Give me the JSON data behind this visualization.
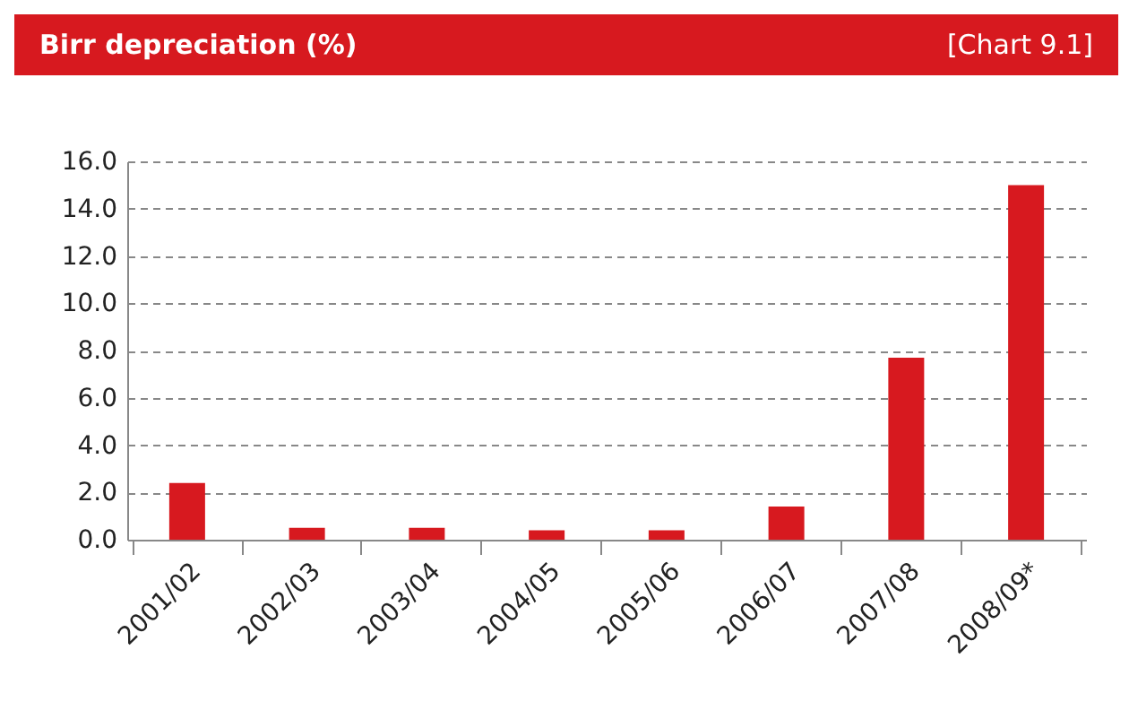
{
  "chart_data": {
    "type": "bar",
    "title": "Birr depreciation (%)",
    "annotations": [
      "[Chart 9.1]"
    ],
    "categories": [
      "2001/02",
      "2002/03",
      "2003/04",
      "2004/05",
      "2005/06",
      "2006/07",
      "2007/08",
      "2008/09*"
    ],
    "values": [
      2.4,
      0.5,
      0.5,
      0.4,
      0.4,
      1.4,
      7.7,
      15.0
    ],
    "color": "#d7191f",
    "ylim": [
      0,
      16
    ],
    "yticks": [
      {
        "value": 0,
        "label": "0.0"
      },
      {
        "value": 2,
        "label": "2.0"
      },
      {
        "value": 4,
        "label": "4.0"
      },
      {
        "value": 6,
        "label": "6.0"
      },
      {
        "value": 8,
        "label": "8.0"
      },
      {
        "value": 10,
        "label": "10.0"
      },
      {
        "value": 12,
        "label": "12.0"
      },
      {
        "value": 14,
        "label": "14.0"
      },
      {
        "value": 16,
        "label": "16.0"
      }
    ],
    "grid": "y"
  }
}
